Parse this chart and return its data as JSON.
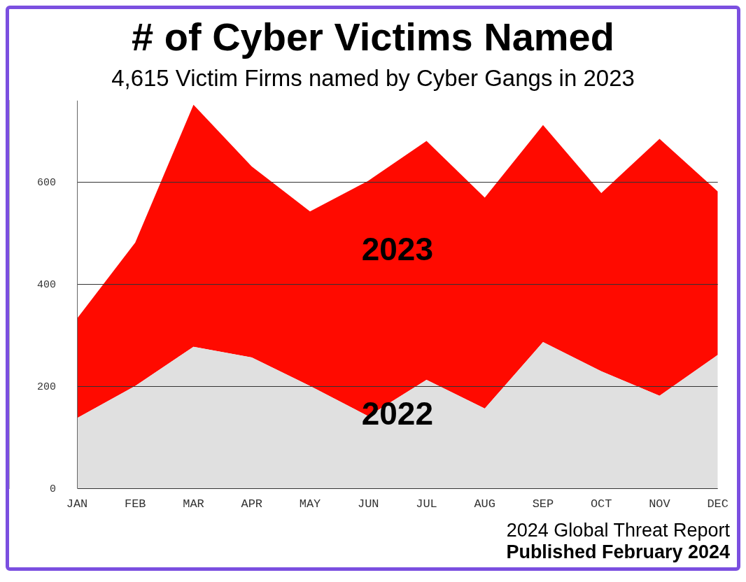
{
  "chart_data": {
    "type": "area",
    "title": "# of Cyber Victims Named",
    "subtitle": "4,615 Victim Firms named by Cyber Gangs in 2023",
    "categories": [
      "JAN",
      "FEB",
      "MAR",
      "APR",
      "MAY",
      "JUN",
      "JUL",
      "AUG",
      "SEP",
      "OCT",
      "NOV",
      "DEC"
    ],
    "stacked": true,
    "series": [
      {
        "name": "2022",
        "color": "#e0e0e0",
        "values": [
          138,
          201,
          278,
          257,
          201,
          142,
          213,
          157,
          287,
          230,
          182,
          262
        ]
      },
      {
        "name": "2023",
        "color": "#ff0a00",
        "values": [
          195,
          281,
          474,
          374,
          342,
          461,
          468,
          413,
          425,
          349,
          503,
          320
        ]
      }
    ],
    "ylim": [
      0,
      760
    ],
    "yticks": [
      0,
      200,
      400,
      600
    ],
    "grid": "y",
    "legend": false,
    "annotations": [
      "2024 Global Threat Report",
      "Published February 2024"
    ]
  }
}
